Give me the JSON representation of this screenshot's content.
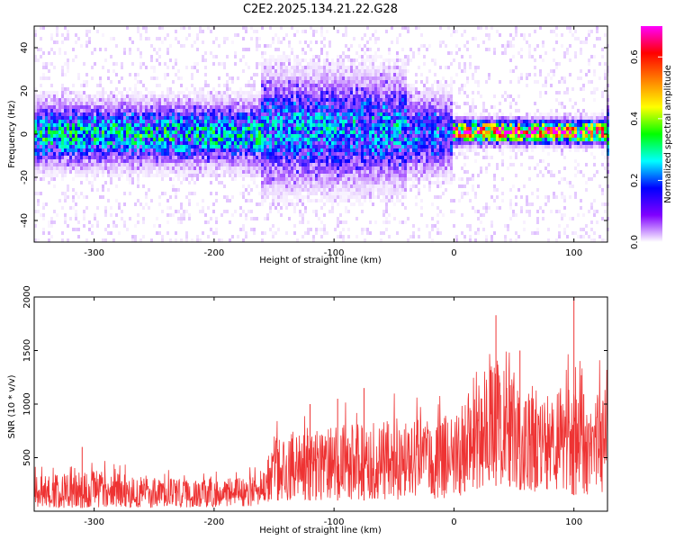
{
  "title": "C2E2.2025.134.21.22.G28",
  "chart_data": [
    {
      "type": "heatmap",
      "xlabel": "Height of straight line (km)",
      "ylabel": "Frequency (Hz)",
      "xlim": [
        -350,
        128
      ],
      "ylim": [
        -50,
        50
      ],
      "xticks": [
        -300,
        -200,
        -100,
        0,
        100
      ],
      "yticks": [
        -40,
        -20,
        0,
        20,
        40
      ],
      "colorbar": {
        "label": "Normalized spectral amplitude",
        "range": [
          0,
          0.7
        ],
        "ticks": [
          0.0,
          0.2,
          0.4,
          0.6
        ],
        "tick_labels": [
          "0.0",
          "0.2",
          "0.4",
          "0.6"
        ],
        "colormap": [
          "#ffffff",
          "#8000ff",
          "#0000ff",
          "#00ffff",
          "#00ff00",
          "#ffff00",
          "#ff8000",
          "#ff0000",
          "#ff00ff"
        ]
      },
      "bands": [
        {
          "x_range": [
            -350,
            -160
          ],
          "center_freq": 0,
          "half_width": 8,
          "peak_amplitude": 0.25
        },
        {
          "x_range": [
            -160,
            -40
          ],
          "center_freq": 2,
          "half_width": 14,
          "peak_amplitude": 0.2
        },
        {
          "x_range": [
            -40,
            0
          ],
          "center_freq": 0,
          "half_width": 10,
          "peak_amplitude": 0.18
        },
        {
          "x_range": [
            0,
            128
          ],
          "center_freq": 1,
          "half_width": 3,
          "peak_amplitude": 0.55
        }
      ]
    },
    {
      "type": "line",
      "xlabel": "Height of straight line (km)",
      "ylabel": "SNR (10 * v/v)",
      "xlim": [
        -350,
        128
      ],
      "ylim": [
        0,
        2000
      ],
      "xticks": [
        -300,
        -200,
        -100,
        0,
        100
      ],
      "yticks": [
        500,
        1000,
        1500,
        2000
      ],
      "series": [
        {
          "color": "#ee3333",
          "envelope": [
            {
              "x": -350,
              "low": 30,
              "high": 320
            },
            {
              "x": -300,
              "low": 30,
              "high": 380
            },
            {
              "x": -250,
              "low": 30,
              "high": 310
            },
            {
              "x": -200,
              "low": 40,
              "high": 300
            },
            {
              "x": -160,
              "low": 50,
              "high": 320
            },
            {
              "x": -150,
              "low": 100,
              "high": 700
            },
            {
              "x": -100,
              "low": 100,
              "high": 800
            },
            {
              "x": -50,
              "low": 100,
              "high": 850
            },
            {
              "x": 0,
              "low": 120,
              "high": 900
            },
            {
              "x": 20,
              "low": 200,
              "high": 1250
            },
            {
              "x": 40,
              "low": 250,
              "high": 1450
            },
            {
              "x": 70,
              "low": 150,
              "high": 1000
            },
            {
              "x": 90,
              "low": 200,
              "high": 1200
            },
            {
              "x": 100,
              "low": 150,
              "high": 1100
            },
            {
              "x": 128,
              "low": 150,
              "high": 1150
            }
          ],
          "peaks": [
            {
              "x": -310,
              "y": 600
            },
            {
              "x": -120,
              "y": 1000
            },
            {
              "x": -97,
              "y": 1050
            },
            {
              "x": -75,
              "y": 1150
            },
            {
              "x": 35,
              "y": 1830
            },
            {
              "x": 55,
              "y": 1500
            },
            {
              "x": 100,
              "y": 2000
            }
          ]
        }
      ]
    }
  ]
}
